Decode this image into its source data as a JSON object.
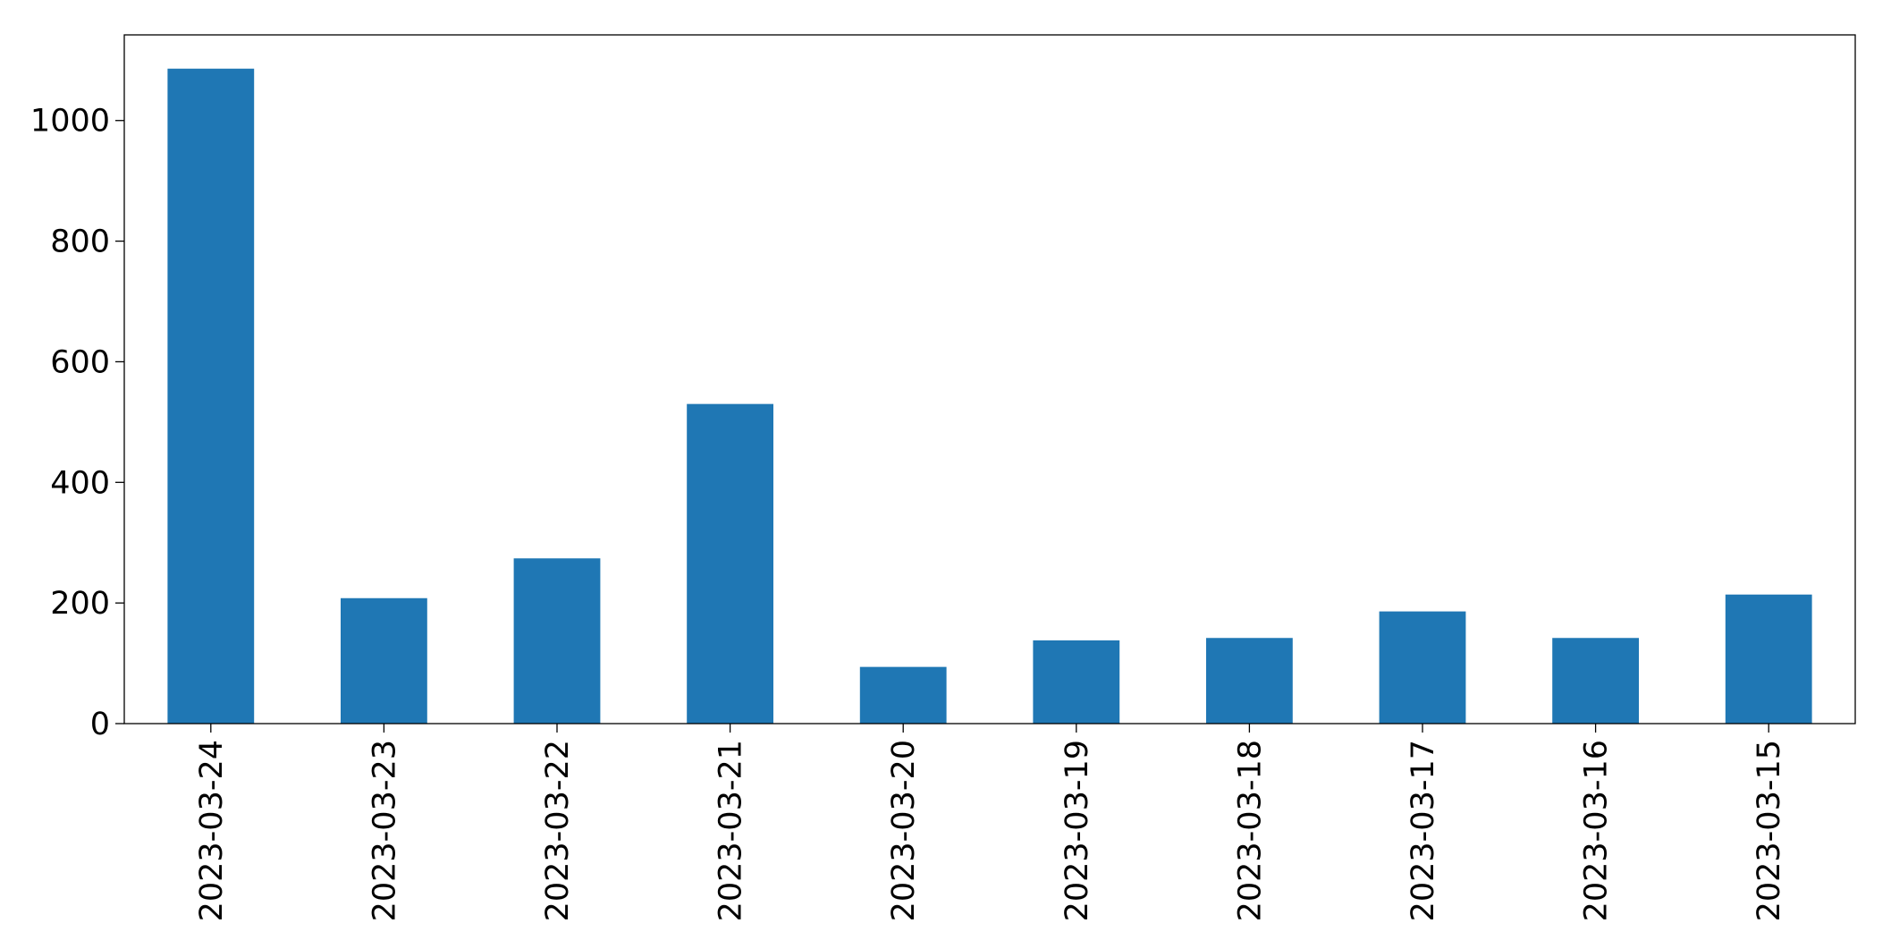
{
  "chart_data": {
    "type": "bar",
    "categories": [
      "2023-03-24",
      "2023-03-23",
      "2023-03-22",
      "2023-03-21",
      "2023-03-20",
      "2023-03-19",
      "2023-03-18",
      "2023-03-17",
      "2023-03-16",
      "2023-03-15"
    ],
    "values": [
      1086,
      208,
      274,
      530,
      94,
      138,
      142,
      186,
      142,
      214
    ],
    "color": "#1f77b4",
    "ylim": [
      0,
      1142
    ],
    "yticks": [
      0,
      200,
      400,
      600,
      800,
      1000
    ],
    "grid": false
  }
}
